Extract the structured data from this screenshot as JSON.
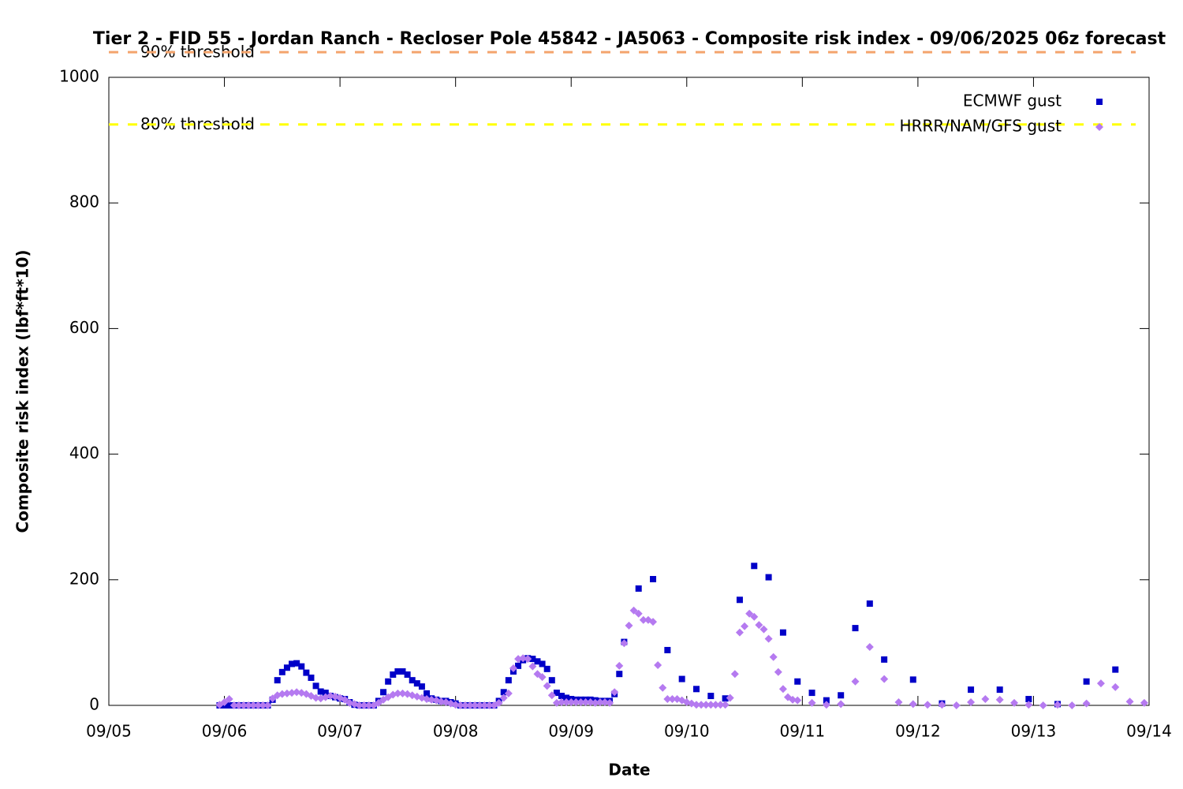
{
  "chart_data": {
    "type": "scatter",
    "title": "Tier 2 - FID 55 - Jordan Ranch - Recloser Pole 45842 - JA5063 - Composite risk index - 09/06/2025 06z forecast",
    "xlabel": "Date",
    "ylabel": "Composite risk index (lbf*ft*10)",
    "xlim": [
      0,
      216
    ],
    "xticks": [
      {
        "value": 0,
        "label": "09/05"
      },
      {
        "value": 24,
        "label": "09/06"
      },
      {
        "value": 48,
        "label": "09/07"
      },
      {
        "value": 72,
        "label": "09/08"
      },
      {
        "value": 96,
        "label": "09/09"
      },
      {
        "value": 120,
        "label": "09/10"
      },
      {
        "value": 144,
        "label": "09/11"
      },
      {
        "value": 168,
        "label": "09/12"
      },
      {
        "value": 192,
        "label": "09/13"
      },
      {
        "value": 216,
        "label": "09/14"
      }
    ],
    "ylim": [
      0,
      1000
    ],
    "yticks": [
      0,
      200,
      400,
      600,
      800,
      1000
    ],
    "legend": "top-right",
    "thresholds": [
      {
        "label": "90% threshold",
        "value": 1040,
        "color": "#f4a46c"
      },
      {
        "label": "80% threshold",
        "value": 925,
        "color": "#ffff00"
      }
    ],
    "series": [
      {
        "name": "ECMWF gust",
        "color": "#0000c8",
        "marker": "square",
        "x": [
          23,
          24,
          25,
          26,
          27,
          28,
          29,
          30,
          31,
          32,
          33,
          34,
          35,
          36,
          37,
          38,
          39,
          40,
          41,
          42,
          43,
          44,
          45,
          46,
          47,
          48,
          49,
          50,
          51,
          52,
          53,
          54,
          55,
          56,
          57,
          58,
          59,
          60,
          61,
          62,
          63,
          64,
          65,
          66,
          67,
          68,
          69,
          70,
          71,
          72,
          73,
          74,
          75,
          76,
          77,
          78,
          79,
          80,
          81,
          82,
          83,
          84,
          85,
          86,
          87,
          88,
          89,
          90,
          91,
          92,
          93,
          94,
          95,
          96,
          97,
          98,
          99,
          100,
          101,
          102,
          103,
          104,
          105,
          106,
          107,
          110,
          113,
          116,
          119,
          122,
          125,
          128,
          131,
          134,
          137,
          140,
          143,
          146,
          149,
          152,
          155,
          158,
          161,
          167,
          173,
          179,
          185,
          191,
          197,
          203,
          209
        ],
        "values": [
          0,
          0,
          0,
          0,
          0,
          0,
          0,
          0,
          0,
          0,
          0,
          9,
          40,
          53,
          60,
          66,
          67,
          62,
          52,
          44,
          31,
          22,
          20,
          15,
          13,
          11,
          10,
          5,
          1,
          0,
          0,
          0,
          0,
          7,
          21,
          38,
          49,
          54,
          54,
          49,
          40,
          35,
          30,
          19,
          11,
          9,
          7,
          7,
          5,
          3,
          0,
          0,
          0,
          0,
          0,
          0,
          0,
          0,
          7,
          21,
          40,
          54,
          63,
          72,
          75,
          74,
          70,
          66,
          58,
          40,
          20,
          15,
          12,
          10,
          9,
          9,
          9,
          9,
          8,
          7,
          7,
          7,
          18,
          50,
          101,
          186,
          201,
          88,
          42,
          26,
          15,
          11,
          168,
          222,
          204,
          116,
          38,
          20,
          8,
          16,
          123,
          162,
          73,
          41,
          3,
          25,
          25,
          10,
          2,
          38,
          57
        ]
      },
      {
        "name": "HRRR/NAM/GFS gust",
        "color": "#b57af0",
        "marker": "diamond",
        "x": [
          23,
          24,
          25,
          26,
          27,
          28,
          29,
          30,
          31,
          32,
          33,
          34,
          35,
          36,
          37,
          38,
          39,
          40,
          41,
          42,
          43,
          44,
          45,
          46,
          47,
          48,
          49,
          50,
          51,
          52,
          53,
          54,
          55,
          56,
          57,
          58,
          59,
          60,
          61,
          62,
          63,
          64,
          65,
          66,
          67,
          68,
          69,
          70,
          71,
          72,
          73,
          74,
          75,
          76,
          77,
          78,
          79,
          80,
          81,
          82,
          83,
          84,
          85,
          86,
          87,
          88,
          89,
          90,
          91,
          92,
          93,
          94,
          95,
          96,
          97,
          98,
          99,
          100,
          101,
          102,
          103,
          104,
          105,
          106,
          107,
          108,
          109,
          110,
          111,
          112,
          113,
          114,
          115,
          116,
          117,
          118,
          119,
          120,
          121,
          122,
          123,
          124,
          125,
          126,
          127,
          128,
          129,
          130,
          131,
          132,
          133,
          134,
          135,
          136,
          137,
          138,
          139,
          140,
          141,
          142,
          143,
          146,
          149,
          152,
          155,
          158,
          161,
          164,
          167,
          170,
          173,
          176,
          179,
          182,
          185,
          188,
          191,
          194,
          197,
          200,
          203,
          206,
          209,
          212,
          215
        ],
        "values": [
          1,
          5,
          10,
          0,
          0,
          0,
          0,
          0,
          0,
          0,
          0,
          11,
          16,
          18,
          19,
          20,
          21,
          20,
          18,
          15,
          12,
          11,
          13,
          15,
          14,
          12,
          9,
          4,
          2,
          0,
          0,
          0,
          0,
          4,
          9,
          13,
          17,
          19,
          19,
          18,
          16,
          14,
          12,
          10,
          9,
          8,
          6,
          5,
          3,
          1,
          0,
          0,
          0,
          0,
          0,
          0,
          0,
          0,
          4,
          12,
          19,
          59,
          74,
          75,
          74,
          62,
          50,
          45,
          31,
          16,
          4,
          5,
          5,
          5,
          5,
          5,
          5,
          5,
          4,
          5,
          5,
          4,
          21,
          63,
          99,
          127,
          151,
          146,
          136,
          136,
          133,
          64,
          28,
          10,
          10,
          10,
          8,
          5,
          3,
          1,
          1,
          1,
          1,
          1,
          1,
          1,
          12,
          50,
          116,
          126,
          146,
          141,
          128,
          121,
          106,
          77,
          53,
          26,
          13,
          9,
          8,
          4,
          1,
          2,
          38,
          93,
          42,
          5,
          2,
          1,
          1,
          0,
          5,
          10,
          9,
          4,
          1,
          0,
          1,
          0,
          3,
          35,
          29,
          6,
          4
        ]
      }
    ]
  }
}
